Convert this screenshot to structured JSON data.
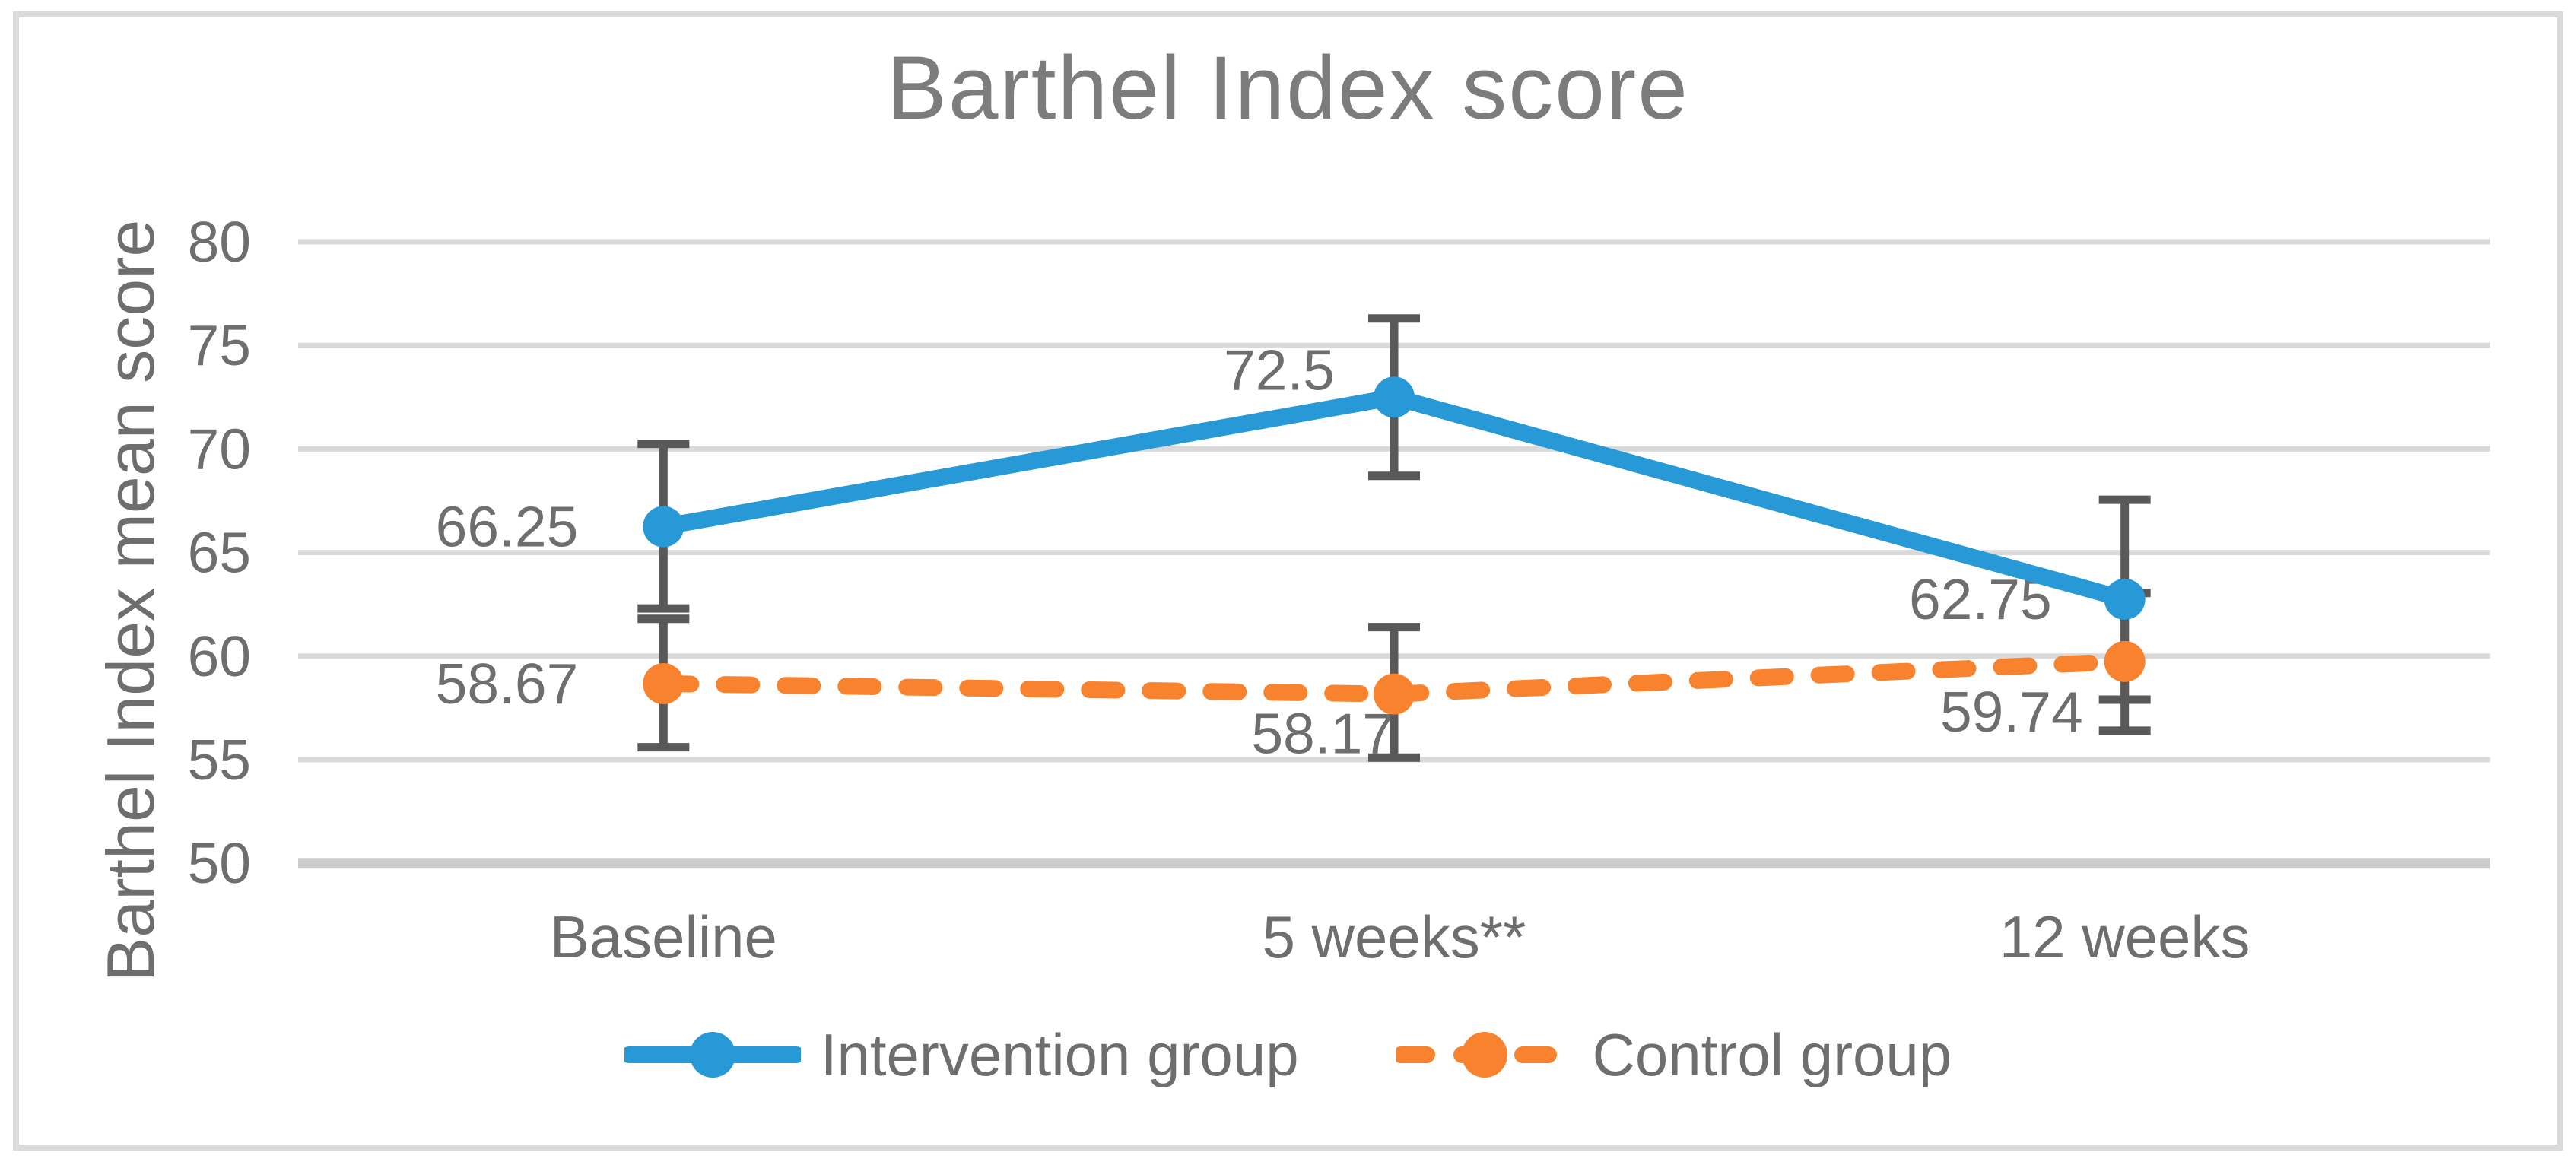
{
  "figure": {
    "background": "#FFFFFF",
    "border_color": "#DBDBDB"
  },
  "chart_data": {
    "type": "line",
    "title": "Barthel Index score",
    "ylabel": "Barthel Index mean score",
    "xlabel": "",
    "categories": [
      "Baseline",
      "5 weeks**",
      "12 weeks"
    ],
    "y_ticks": [
      80,
      75,
      70,
      65,
      60,
      55,
      50
    ],
    "ylim": [
      50,
      80
    ],
    "grid": true,
    "legend_position": "bottom",
    "series": [
      {
        "name": "Intervention group",
        "color": "#2699D6",
        "line_style": "solid",
        "marker": "circle",
        "values": [
          66.25,
          72.5,
          62.75
        ],
        "labels": [
          "66.25",
          "72.5",
          "62.75"
        ],
        "error_low": [
          62.3,
          68.7,
          57.9
        ],
        "error_high": [
          70.25,
          76.3,
          67.55
        ]
      },
      {
        "name": "Control group",
        "color": "#F8822D",
        "line_style": "dashed",
        "marker": "circle",
        "values": [
          58.67,
          58.17,
          59.74
        ],
        "labels": [
          "58.67",
          "58.17",
          "59.74"
        ],
        "error_low": [
          55.6,
          55.1,
          56.4
        ],
        "error_high": [
          61.8,
          61.4,
          63.05
        ]
      }
    ],
    "colors": {
      "error_bar": "#595959",
      "gridline": "#D9D9D9",
      "axis_line": "#CCCCCC",
      "tick_text": "#6E6E6E",
      "data_label_text": "#6E6E6E",
      "title_text": "#7C7C7C"
    }
  }
}
